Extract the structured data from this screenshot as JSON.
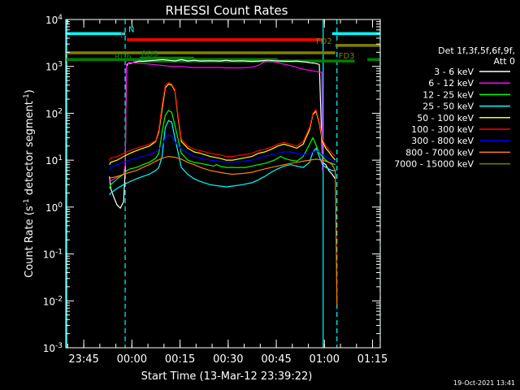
{
  "chart_data": {
    "type": "line",
    "title": "RHESSI Count Rates",
    "xlabel": "Start Time (13-Mar-12 23:39:22)",
    "ylabel_parts": [
      "Count Rate (s",
      "-1",
      " detector segment",
      "-1",
      ")"
    ],
    "x_unit": "minutes after 23:39:22",
    "xlim": [
      0,
      98
    ],
    "ylim": [
      0.001,
      10000
    ],
    "yscale": "log",
    "grid": false,
    "legend_position": "right",
    "x_ticks": [
      {
        "label": "23:45",
        "value": 5.6
      },
      {
        "label": "00:00",
        "value": 20.6
      },
      {
        "label": "00:15",
        "value": 35.6
      },
      {
        "label": "00:30",
        "value": 50.6
      },
      {
        "label": "00:45",
        "value": 65.6
      },
      {
        "label": "01:00",
        "value": 80.6
      },
      {
        "label": "01:15",
        "value": 95.6
      }
    ],
    "y_ticks": [
      {
        "value": 0.001,
        "base": "10",
        "exp": "-3"
      },
      {
        "value": 0.01,
        "base": "10",
        "exp": "-2"
      },
      {
        "value": 0.1,
        "base": "10",
        "exp": "-1"
      },
      {
        "value": 1,
        "base": "10",
        "exp": "0"
      },
      {
        "value": 10,
        "base": "10",
        "exp": "1"
      },
      {
        "value": 100,
        "base": "10",
        "exp": "2"
      },
      {
        "value": 1000,
        "base": "10",
        "exp": "3"
      },
      {
        "value": 10000,
        "base": "10",
        "exp": "4"
      }
    ],
    "legend_header": [
      "Det 1f,3f,5f,6f,9f,",
      "Att 0"
    ],
    "series": [
      {
        "name": "3 - 6 keV",
        "color": "#ffffff",
        "x": [
          13.6,
          14,
          15,
          16,
          17,
          18,
          18.5,
          18.9,
          19.6,
          20,
          21,
          22,
          23,
          24,
          25,
          28,
          30,
          32,
          34,
          35,
          36,
          38,
          40,
          42,
          45,
          48,
          50,
          52,
          55,
          58,
          60,
          63,
          65,
          67,
          70,
          72,
          74,
          75,
          76,
          77,
          78,
          79,
          80,
          81,
          82,
          83,
          84
        ],
        "y": [
          4.5,
          2.5,
          1.6,
          1.1,
          0.95,
          1.3,
          6,
          1000,
          1200,
          1150,
          1200,
          1250,
          1300,
          1280,
          1300,
          1350,
          1400,
          1350,
          1300,
          1350,
          1400,
          1300,
          1350,
          1300,
          1320,
          1300,
          1350,
          1300,
          1320,
          1280,
          1300,
          1350,
          1320,
          1300,
          1280,
          1300,
          1250,
          1230,
          1200,
          1180,
          1150,
          1100,
          9,
          8,
          6,
          5,
          4
        ]
      },
      {
        "name": "6 - 12 keV",
        "color": "#ff00ff",
        "x": [
          13.6,
          15,
          18,
          18.5,
          18.9,
          19.6,
          21,
          24,
          27,
          30,
          33,
          36,
          39,
          42,
          45,
          48,
          50,
          55,
          58,
          60,
          62,
          63,
          65,
          67,
          69,
          71,
          73,
          75,
          77,
          79,
          79.8,
          80
        ],
        "y": [
          3.5,
          4,
          5,
          8,
          1100,
          1200,
          1200,
          1150,
          1100,
          1050,
          1000,
          1000,
          950,
          950,
          950,
          950,
          930,
          930,
          960,
          1050,
          1250,
          1300,
          1250,
          1150,
          1080,
          1000,
          900,
          850,
          800,
          760,
          750,
          6
        ]
      },
      {
        "name": "12 - 25 keV",
        "color": "#00ff00",
        "x": [
          13.6,
          14,
          16,
          18,
          19,
          20,
          22,
          24,
          26,
          28,
          29,
          30,
          31,
          32,
          33,
          34,
          36,
          38,
          40,
          42,
          44,
          46,
          47,
          48,
          50,
          52,
          54,
          56,
          58,
          60,
          62,
          63,
          64,
          65,
          66,
          67,
          68,
          70,
          72,
          74,
          76,
          77,
          78,
          79,
          80,
          81,
          82,
          83,
          84
        ],
        "y": [
          2.5,
          3,
          4,
          5,
          6,
          6.5,
          7,
          8,
          9,
          11,
          14,
          40,
          90,
          115,
          105,
          55,
          14,
          10,
          9,
          8.5,
          8,
          7.5,
          8,
          7.5,
          7,
          7,
          7,
          7,
          7.5,
          8,
          8.5,
          9,
          9.5,
          10,
          11,
          12,
          11,
          10,
          9.5,
          12,
          22,
          30,
          21,
          14,
          12,
          10,
          9,
          8.5,
          8
        ]
      },
      {
        "name": "25 - 50 keV",
        "color": "#00ffff",
        "x": [
          13.6,
          14,
          16,
          18,
          20,
          22,
          24,
          26,
          28,
          29,
          30,
          31,
          32,
          33,
          34,
          36,
          38,
          40,
          42,
          45,
          48,
          50,
          52,
          55,
          58,
          60,
          62,
          64,
          66,
          68,
          70,
          72,
          74,
          76,
          77,
          78,
          79,
          80,
          81,
          82,
          83,
          84
        ],
        "y": [
          1.8,
          2,
          2.5,
          3,
          3.5,
          4,
          4.5,
          5,
          6,
          7,
          12,
          50,
          70,
          65,
          30,
          7,
          5,
          4,
          3.5,
          3,
          2.8,
          2.7,
          2.8,
          3,
          3.3,
          3.8,
          4.5,
          5.5,
          6.5,
          7.5,
          8,
          7.5,
          7,
          9,
          15,
          18,
          12,
          8,
          7,
          6.5,
          6,
          6
        ]
      },
      {
        "name": "50 - 100 keV",
        "color": "#ffff00",
        "x": [
          13.6,
          14,
          16,
          18,
          20,
          22,
          24,
          26,
          28,
          29,
          30,
          31,
          32,
          33,
          34,
          35,
          36,
          38,
          40,
          42,
          45,
          48,
          50,
          52,
          55,
          58,
          60,
          62,
          64,
          66,
          68,
          70,
          72,
          74,
          76,
          77,
          78,
          79,
          80,
          81,
          82,
          83,
          84
        ],
        "y": [
          8,
          9,
          10,
          12,
          14,
          16,
          18,
          20,
          25,
          40,
          120,
          350,
          420,
          400,
          300,
          80,
          25,
          18,
          15,
          14,
          12,
          11,
          10,
          10,
          11,
          12,
          14,
          15,
          17,
          20,
          22,
          20,
          18,
          22,
          45,
          95,
          110,
          60,
          25,
          18,
          15,
          12,
          10
        ]
      },
      {
        "name": "100 - 300 keV",
        "color": "#ff0000",
        "x": [
          13.6,
          14,
          16,
          18,
          20,
          22,
          24,
          26,
          28,
          29,
          30,
          31,
          32,
          33,
          34,
          35,
          36,
          38,
          40,
          42,
          45,
          48,
          50,
          52,
          55,
          58,
          60,
          62,
          64,
          66,
          68,
          70,
          72,
          74,
          76,
          77,
          78,
          79,
          80,
          81,
          82,
          83,
          84
        ],
        "y": [
          10,
          11,
          12,
          14,
          16,
          18,
          20,
          22,
          26,
          45,
          150,
          400,
          450,
          420,
          320,
          90,
          28,
          20,
          17,
          16,
          14,
          13,
          12,
          12,
          13,
          14,
          16,
          17,
          19,
          22,
          24,
          22,
          20,
          25,
          50,
          100,
          120,
          65,
          28,
          20,
          17,
          14,
          12
        ]
      },
      {
        "name": "300 - 800 keV",
        "color": "#0000ff",
        "x": [
          13.6,
          14,
          16,
          18,
          20,
          22,
          24,
          26,
          28,
          30,
          31,
          32,
          33,
          34,
          36,
          38,
          40,
          42,
          45,
          48,
          50,
          52,
          55,
          58,
          60,
          62,
          64,
          66,
          68,
          70,
          72,
          74,
          76,
          77,
          78,
          79,
          80,
          81,
          82,
          83,
          84
        ],
        "y": [
          6,
          7,
          8,
          9,
          10,
          11,
          12,
          13,
          15,
          20,
          30,
          35,
          32,
          25,
          17,
          14,
          12,
          11,
          10,
          9.5,
          9,
          9,
          9.5,
          10,
          11,
          12,
          13,
          14,
          15,
          15,
          14,
          13,
          14,
          15,
          16,
          15,
          13,
          12,
          11,
          10,
          9
        ]
      },
      {
        "name": "800 - 7000 keV",
        "color": "#ff8000",
        "x": [
          13.6,
          14,
          16,
          18,
          20,
          22,
          24,
          26,
          28,
          30,
          32,
          34,
          36,
          38,
          40,
          42,
          45,
          48,
          50,
          52,
          55,
          58,
          60,
          62,
          64,
          66,
          68,
          70,
          72,
          74,
          76,
          78,
          80,
          81,
          82,
          83,
          84,
          84.5
        ],
        "y": [
          4,
          4.2,
          4.5,
          5,
          5.5,
          6,
          7,
          8,
          9.5,
          11,
          12,
          11.5,
          10.5,
          9,
          8,
          7,
          6,
          5.5,
          5.2,
          5,
          5.2,
          5.5,
          6,
          6.5,
          7,
          7.5,
          8,
          8.5,
          9,
          9.5,
          10,
          10.5,
          10,
          9.5,
          9,
          8,
          6,
          0.008
        ]
      },
      {
        "name": "7000 - 15000 keV",
        "color": "#808000",
        "x": [],
        "y": []
      }
    ],
    "state_bars": [
      {
        "label": "N",
        "color": "#00ffff",
        "y": 5000,
        "segments": [
          [
            0,
            18.5
          ],
          [
            83,
            98
          ]
        ]
      },
      {
        "label": "F",
        "color": "#ff0000",
        "y": 3700,
        "segments": [
          [
            19,
            80
          ]
        ]
      },
      {
        "label": "FD2",
        "color": "#808000",
        "y": 2800,
        "segments": [
          [
            84,
            98
          ]
        ]
      },
      {
        "label": "FD3",
        "color": "#808000",
        "y": 1950,
        "segments": [
          [
            0,
            84
          ]
        ]
      },
      {
        "label": "",
        "color": "#008000",
        "y": 1400,
        "segments": [
          [
            0,
            66
          ],
          [
            94,
            98
          ]
        ]
      },
      {
        "label": "RD6",
        "color": "#008000",
        "y": 1300,
        "segments": [
          [
            21,
            90
          ]
        ]
      },
      {
        "label": "RD5",
        "color": "#008000",
        "y": 1500,
        "segments": [
          [
            23,
            40
          ]
        ]
      }
    ],
    "event_lines": [
      {
        "x": 0.3,
        "color": "#00ffff",
        "style": "solid"
      },
      {
        "x": 80.2,
        "color": "#00ffff",
        "style": "solid"
      },
      {
        "x": 18.5,
        "color": "#00ffff",
        "style": "dashed"
      },
      {
        "x": 84.5,
        "color": "#00ffff",
        "style": "dashed"
      },
      {
        "x": 98,
        "color": "#00ffff",
        "style": "dashed"
      }
    ],
    "footer_timestamp": "19-Oct-2021 13:41"
  }
}
